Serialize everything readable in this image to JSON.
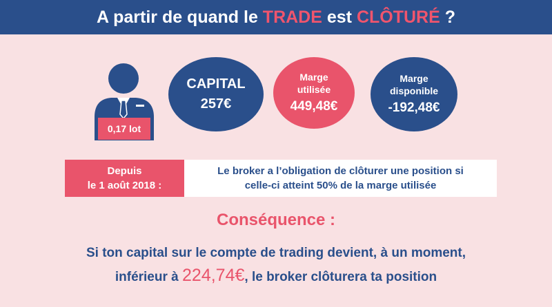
{
  "header": {
    "part1": "A partir de quand le ",
    "highlight1": "TRADE",
    "part2": " est ",
    "highlight2": "CLÔTURÉ",
    "part3": " ?"
  },
  "trader": {
    "icon": "businessman-icon",
    "lot": "0,17 lot"
  },
  "capital": {
    "label": "CAPITAL",
    "value": "257€"
  },
  "marge_utilisee": {
    "label_line1": "Marge",
    "label_line2": "utilisée",
    "value": "449,48€"
  },
  "marge_disponible": {
    "label_line1": "Marge",
    "label_line2": "disponible",
    "value": "-192,48€"
  },
  "rule": {
    "date_line1": "Depuis",
    "date_line2": "le 1 août 2018 :",
    "text_line1": "Le broker a l’obligation de clôturer une position si",
    "text_line2": "celle-ci atteint 50% de la marge utilisée"
  },
  "consequence": {
    "title": "Conséquence :"
  },
  "conclusion": {
    "line1": "Si ton capital sur le compte de trading devient, à un moment,",
    "line2_before": "inférieur à ",
    "amount": "224,74€",
    "line2_after": ", le broker clôturera ta position"
  },
  "colors": {
    "navy": "#2a4f8b",
    "pink": "#e9546b",
    "background": "#f9e1e3"
  }
}
